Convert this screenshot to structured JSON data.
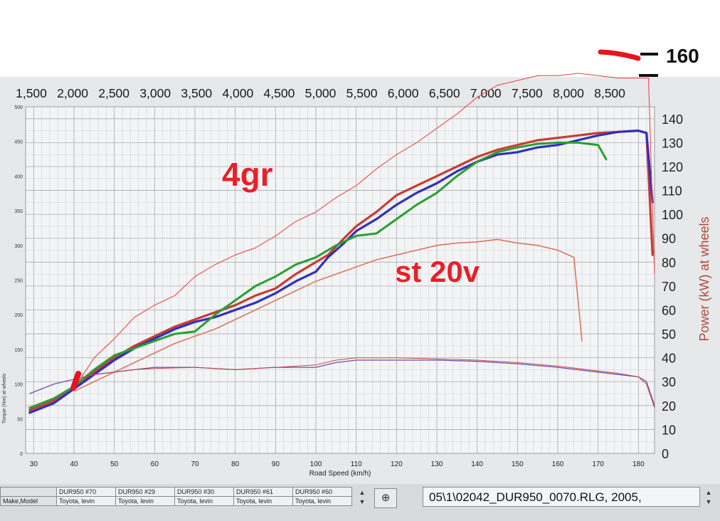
{
  "chart_data": {
    "type": "line",
    "top_axis": {
      "label": "",
      "ticks": [
        "1,500",
        "2,000",
        "2,500",
        "3,000",
        "3,500",
        "4,000",
        "4,500",
        "5,000",
        "5,500",
        "6,000",
        "6,500",
        "7,000",
        "7,500",
        "8,000",
        "8,500"
      ]
    },
    "xlabel": "Road Speed (km/h)",
    "xlim": [
      28,
      184
    ],
    "x_ticks": [
      30,
      40,
      50,
      60,
      70,
      80,
      90,
      100,
      110,
      120,
      130,
      140,
      150,
      160,
      170,
      180
    ],
    "y_right": {
      "label": "Power (kW) at wheels",
      "lim": [
        0,
        145
      ],
      "ticks": [
        0,
        10,
        20,
        30,
        40,
        50,
        60,
        70,
        80,
        90,
        100,
        110,
        120,
        130,
        140
      ]
    },
    "y_left": {
      "label": "Torque (Nm) at wheels",
      "lim": [
        0,
        500
      ],
      "ticks": [
        0,
        50,
        100,
        150,
        200,
        250,
        300,
        350,
        400,
        450,
        500
      ]
    },
    "annotations": [
      {
        "text": "4gr",
        "color": "#e8202a"
      },
      {
        "text": "st 20v",
        "color": "#e8202a"
      },
      {
        "text": "160",
        "color": "#111111"
      }
    ],
    "series": [
      {
        "name": "",
        "color": "#c83c32",
        "axis": "power",
        "x": [
          29,
          35,
          40,
          45,
          50,
          55,
          60,
          65,
          70,
          75,
          80,
          85,
          90,
          95,
          100,
          103,
          107,
          110,
          115,
          120,
          125,
          130,
          135,
          140,
          145,
          150,
          155,
          160,
          165,
          170,
          175,
          180,
          182,
          183.5
        ],
        "y": [
          18,
          22,
          27,
          34,
          40,
          45,
          49,
          53,
          56,
          59,
          62,
          66,
          69,
          75,
          80,
          83,
          90,
          95,
          101,
          108,
          112,
          116,
          120,
          124,
          127,
          129,
          131,
          132,
          133,
          134,
          134.5,
          135,
          134,
          83
        ]
      },
      {
        "name": "",
        "color": "#3030c0",
        "axis": "power",
        "x": [
          29,
          35,
          40,
          45,
          50,
          55,
          60,
          65,
          70,
          75,
          80,
          85,
          90,
          95,
          100,
          103,
          107,
          110,
          115,
          120,
          125,
          130,
          135,
          140,
          145,
          150,
          155,
          160,
          165,
          170,
          175,
          180,
          182,
          183.5
        ],
        "y": [
          17,
          21,
          27,
          33,
          39,
          44,
          48,
          52,
          55,
          57,
          60,
          63,
          67,
          72,
          76,
          82,
          88,
          93,
          98,
          104,
          109,
          113,
          118,
          122,
          125,
          126,
          128,
          129,
          131,
          133,
          134.5,
          135,
          134,
          105
        ]
      },
      {
        "name": "",
        "color": "#28a030",
        "axis": "power",
        "x": [
          29,
          35,
          40,
          45,
          50,
          55,
          60,
          65,
          70,
          75,
          80,
          85,
          90,
          95,
          100,
          105,
          110,
          115,
          120,
          125,
          130,
          135,
          140,
          145,
          150,
          155,
          160,
          165,
          170,
          172
        ],
        "y": [
          19,
          23,
          28,
          35,
          41,
          44,
          47,
          50,
          51,
          58,
          64,
          70,
          74,
          79,
          82,
          87,
          91,
          92,
          98,
          104,
          109,
          116,
          122,
          126,
          128,
          129.5,
          130,
          130,
          129,
          123
        ]
      },
      {
        "name": "",
        "color": "#ec4a4a",
        "axis": "power",
        "x": [
          40,
          45,
          50,
          55,
          60,
          65,
          70,
          75,
          80,
          85,
          90,
          95,
          100,
          105,
          110,
          115,
          120,
          125,
          130,
          135,
          140,
          145,
          150,
          155,
          160,
          165,
          170,
          175,
          182.5,
          184
        ],
        "y": [
          27,
          40,
          48,
          57,
          62,
          66,
          74,
          79,
          83,
          86,
          91,
          97,
          101,
          107,
          112,
          119,
          125,
          130,
          136,
          142,
          149,
          154,
          156,
          158,
          158,
          159,
          158,
          157,
          157,
          75
        ]
      },
      {
        "name": "",
        "color": "#d87860",
        "axis": "power",
        "x": [
          40,
          45,
          50,
          55,
          60,
          65,
          70,
          75,
          80,
          85,
          90,
          95,
          100,
          105,
          110,
          115,
          120,
          125,
          130,
          135,
          140,
          145,
          150,
          155,
          160,
          164,
          166
        ],
        "y": [
          26,
          30,
          34,
          38,
          42,
          46,
          49,
          52,
          56,
          60,
          64,
          68,
          72,
          75,
          78,
          81,
          83,
          85,
          87,
          88,
          88.5,
          89.5,
          88,
          87,
          85,
          82,
          47
        ]
      },
      {
        "name": "",
        "color": "#7050a8",
        "axis": "power",
        "x": [
          29,
          35,
          40,
          45,
          50,
          55,
          60,
          70,
          80,
          90,
          100,
          105,
          110,
          120,
          130,
          140,
          150,
          160,
          170,
          175,
          180,
          182,
          184
        ],
        "y": [
          25,
          29,
          31,
          33,
          34,
          35,
          36,
          36,
          35,
          36,
          36,
          38,
          39,
          39,
          39,
          38.5,
          37.5,
          36,
          34,
          33,
          32,
          30,
          20
        ]
      },
      {
        "name": "",
        "color": "#c84848",
        "axis": "power",
        "x": [
          40,
          45,
          50,
          55,
          60,
          70,
          80,
          90,
          100,
          105,
          110,
          120,
          130,
          140,
          150,
          160,
          170,
          175,
          180,
          182,
          184
        ],
        "y": [
          31,
          33,
          34,
          35,
          35.5,
          36,
          35,
          36,
          37,
          39,
          40,
          40,
          39.5,
          39,
          38,
          36.5,
          34.5,
          33.5,
          32,
          29,
          19
        ]
      }
    ]
  },
  "bottom_bar": {
    "row_label_1": "",
    "row_label_2": "Make,Model",
    "runs": [
      {
        "id": "DUR950 #70",
        "make": "Toyota, levin"
      },
      {
        "id": "DUR950 #29",
        "make": "Toyota, levin"
      },
      {
        "id": "DUR950 #30",
        "make": "Toyota, levin"
      },
      {
        "id": "DUR950 #61",
        "make": "Toyota, levin"
      },
      {
        "id": "DUR950 #60",
        "make": "Toyota, levin"
      }
    ],
    "spin_up": "▲",
    "spin_down": "▼",
    "zoom_icon": "⊕",
    "file_name": "05\\1\\02042_DUR950_0070.RLG, 2005,"
  }
}
